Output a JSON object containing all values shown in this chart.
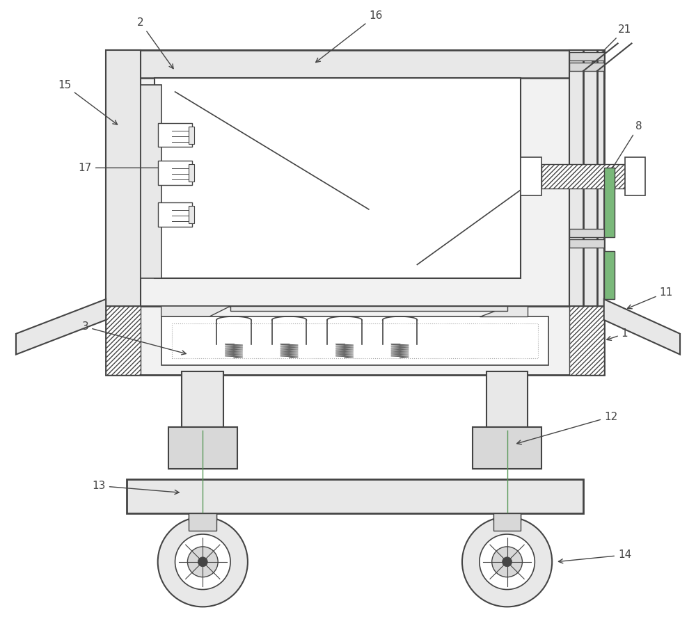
{
  "bg_color": "#ffffff",
  "lc": "#444444",
  "lc_thin": "#555555",
  "fc_frame": "#f2f2f2",
  "fc_light": "#e8e8e8",
  "fc_mid": "#d8d8d8",
  "fc_white": "#ffffff",
  "green1": "#7ab87a",
  "green2": "#5a9a5a"
}
